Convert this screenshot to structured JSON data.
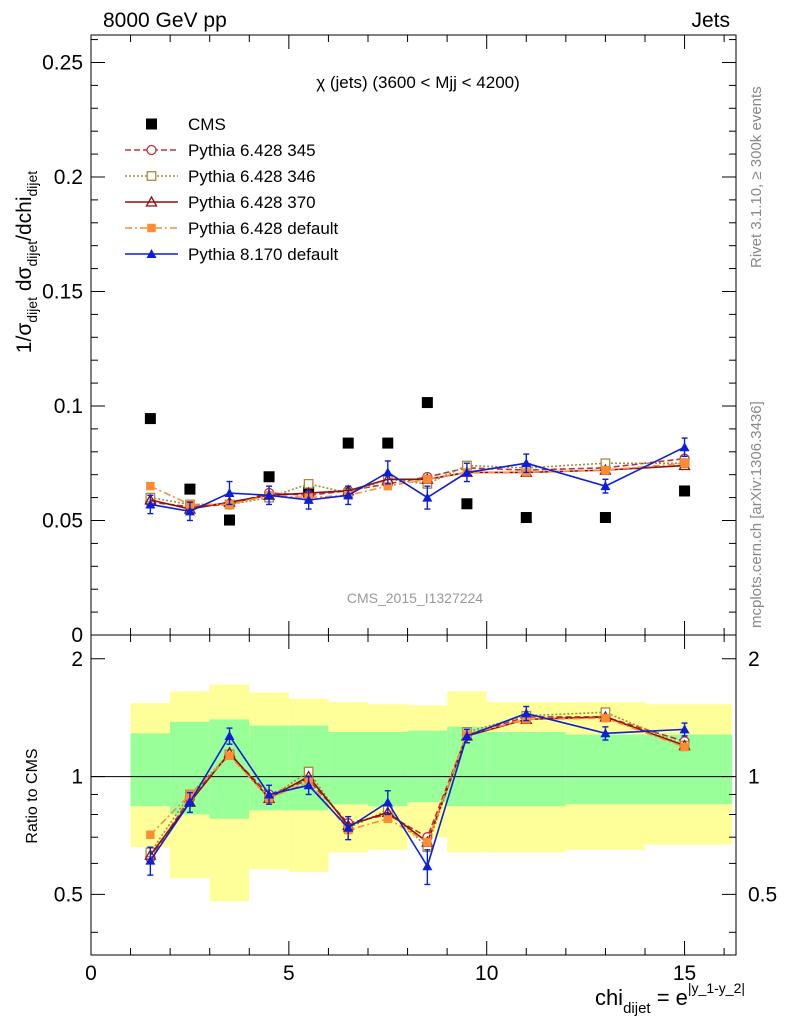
{
  "header": {
    "left": "8000 GeV pp",
    "right": "Jets"
  },
  "side_labels": {
    "top": "Rivet 3.1.10, ≥ 300k events",
    "bottom": "mcplots.cern.ch [arXiv:1306.3436]"
  },
  "watermark": "CMS_2015_I1327224",
  "chart_data": [
    {
      "type": "line",
      "title": "χ (jets) (3600 < Mjj < 4200)",
      "ylabel": "1/σ_dijet dσ_dijet/dchi_dijet",
      "xlim": [
        0,
        16.3
      ],
      "ylim": [
        0,
        0.262
      ],
      "yticks": [
        0,
        0.05,
        0.1,
        0.15,
        0.2,
        0.25
      ],
      "ytick_labels": [
        "0",
        "0.05",
        "0.1",
        "0.15",
        "0.2",
        "0.25"
      ],
      "grid": false,
      "legend": "top-left",
      "x": [
        1.5,
        2.5,
        3.5,
        4.5,
        5.5,
        6.5,
        7.5,
        8.5,
        9.5,
        11.0,
        13.0,
        15.0
      ],
      "series": [
        {
          "name": "CMS",
          "color": "#000000",
          "marker": "square",
          "line": "none",
          "values": [
            0.0945,
            0.0637,
            0.0502,
            0.0691,
            0.0624,
            0.0838,
            0.0838,
            0.1015,
            0.0573,
            0.0513,
            0.0513,
            0.0629
          ]
        },
        {
          "name": "Pythia 6.428 345",
          "color": "#c0303a",
          "marker": "open-circle",
          "line": "dashed",
          "values": [
            0.058,
            0.056,
            0.057,
            0.062,
            0.061,
            0.063,
            0.066,
            0.069,
            0.073,
            0.072,
            0.073,
            0.077
          ]
        },
        {
          "name": "Pythia 6.428 346",
          "color": "#a68a3a",
          "marker": "open-square",
          "line": "dotted",
          "values": [
            0.06,
            0.057,
            0.057,
            0.06,
            0.066,
            0.062,
            0.068,
            0.066,
            0.074,
            0.073,
            0.075,
            0.075
          ]
        },
        {
          "name": "Pythia 6.428 370",
          "color": "#8b1010",
          "marker": "open-triangle",
          "line": "solid",
          "values": [
            0.059,
            0.055,
            0.058,
            0.061,
            0.062,
            0.063,
            0.068,
            0.068,
            0.071,
            0.071,
            0.072,
            0.074
          ]
        },
        {
          "name": "Pythia 6.428 default",
          "color": "#ff8c33",
          "marker": "filled-square",
          "line": "dashdot",
          "values": [
            0.065,
            0.057,
            0.057,
            0.061,
            0.06,
            0.061,
            0.065,
            0.068,
            0.071,
            0.071,
            0.072,
            0.075
          ]
        },
        {
          "name": "Pythia 8.170 default",
          "color": "#0a1fd6",
          "marker": "filled-triangle",
          "line": "solid",
          "values": [
            0.057,
            0.054,
            0.062,
            0.061,
            0.059,
            0.061,
            0.071,
            0.06,
            0.071,
            0.075,
            0.065,
            0.082
          ],
          "errors": [
            0.004,
            0.004,
            0.005,
            0.004,
            0.004,
            0.004,
            0.005,
            0.005,
            0.004,
            0.004,
            0.003,
            0.004
          ]
        }
      ]
    },
    {
      "type": "line",
      "ylabel": "Ratio to CMS",
      "xlabel": "chi_dijet = e^|y_1-y_2|",
      "xlim": [
        0,
        16.3
      ],
      "ylim": [
        0.35,
        2.3
      ],
      "xticks": [
        0,
        5,
        10,
        15
      ],
      "xtick_labels": [
        "0",
        "5",
        "10",
        "15"
      ],
      "yticks": [
        0.5,
        1,
        2
      ],
      "ytick_labels": [
        "0.5",
        "1",
        "2"
      ],
      "reference_line": 1,
      "bands": {
        "edges": [
          1,
          2,
          3,
          4,
          5,
          6,
          7,
          8,
          9,
          10,
          12,
          14,
          16.2
        ],
        "yellow_low": [
          0.66,
          0.55,
          0.48,
          0.58,
          0.57,
          0.64,
          0.65,
          0.7,
          0.64,
          0.64,
          0.65,
          0.67
        ],
        "yellow_high": [
          1.54,
          1.65,
          1.72,
          1.64,
          1.58,
          1.55,
          1.53,
          1.52,
          1.65,
          1.55,
          1.55,
          1.53
        ],
        "green_low": [
          0.84,
          0.8,
          0.78,
          0.82,
          0.82,
          0.85,
          0.84,
          0.86,
          0.84,
          0.84,
          0.85,
          0.85
        ],
        "green_high": [
          1.29,
          1.38,
          1.4,
          1.35,
          1.35,
          1.3,
          1.3,
          1.31,
          1.34,
          1.3,
          1.28,
          1.28
        ]
      },
      "band_colors": {
        "yellow": "#ffff99",
        "green": "#99ff99"
      },
      "series": [
        {
          "name": "Pythia 6.428 345",
          "color": "#c0303a",
          "values": [
            0.62,
            0.88,
            1.14,
            0.9,
            0.98,
            0.76,
            0.8,
            0.7,
            1.28,
            1.42,
            1.42,
            1.23
          ]
        },
        {
          "name": "Pythia 6.428 346",
          "color": "#a68a3a",
          "values": [
            0.64,
            0.9,
            1.14,
            0.88,
            1.03,
            0.74,
            0.82,
            0.66,
            1.3,
            1.43,
            1.46,
            1.2
          ]
        },
        {
          "name": "Pythia 6.428 370",
          "color": "#8b1010",
          "values": [
            0.63,
            0.86,
            1.15,
            0.88,
            1.0,
            0.75,
            0.81,
            0.68,
            1.27,
            1.4,
            1.42,
            1.2
          ]
        },
        {
          "name": "Pythia 6.428 default",
          "color": "#ff8c33",
          "values": [
            0.71,
            0.9,
            1.13,
            0.88,
            0.97,
            0.73,
            0.78,
            0.68,
            1.28,
            1.4,
            1.41,
            1.19
          ]
        },
        {
          "name": "Pythia 8.170 default",
          "color": "#0a1fd6",
          "values": [
            0.61,
            0.86,
            1.27,
            0.9,
            0.95,
            0.74,
            0.86,
            0.59,
            1.27,
            1.45,
            1.29,
            1.32
          ],
          "errors": [
            0.05,
            0.05,
            0.06,
            0.05,
            0.05,
            0.05,
            0.06,
            0.06,
            0.05,
            0.06,
            0.05,
            0.05
          ]
        }
      ]
    }
  ]
}
